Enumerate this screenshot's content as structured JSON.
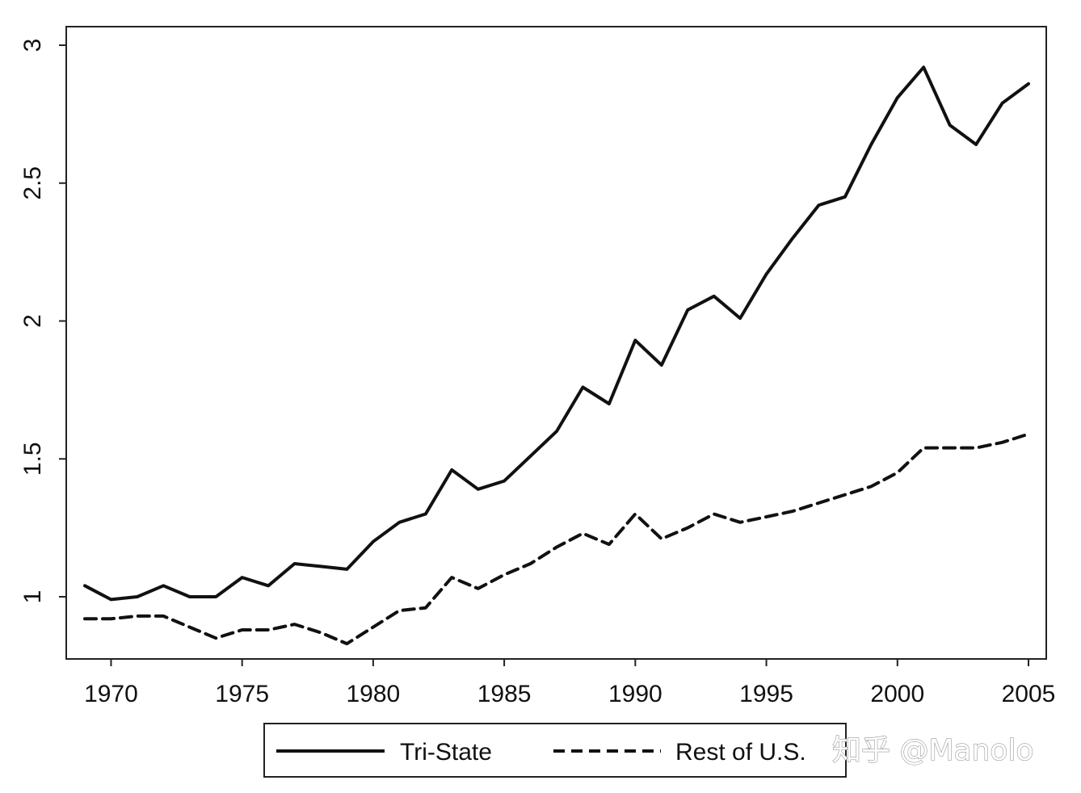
{
  "chart_data": {
    "type": "line",
    "title": "",
    "xlabel": "",
    "ylabel": "",
    "xlim": [
      1969,
      2005
    ],
    "ylim": [
      0.78,
      3.05
    ],
    "x_ticks": [
      1970,
      1975,
      1980,
      1985,
      1990,
      1995,
      2000,
      2005
    ],
    "y_ticks": [
      1,
      1.5,
      2,
      2.5,
      3
    ],
    "grid": false,
    "legend_position": "bottom",
    "x": [
      1969,
      1970,
      1971,
      1972,
      1973,
      1974,
      1975,
      1976,
      1977,
      1978,
      1979,
      1980,
      1981,
      1982,
      1983,
      1984,
      1985,
      1986,
      1987,
      1988,
      1989,
      1990,
      1991,
      1992,
      1993,
      1994,
      1995,
      1996,
      1997,
      1998,
      1999,
      2000,
      2001,
      2002,
      2003,
      2004,
      2005
    ],
    "series": [
      {
        "name": "Tri-State",
        "style": "solid",
        "values": [
          1.04,
          0.99,
          1.0,
          1.04,
          1.0,
          1.0,
          1.07,
          1.04,
          1.12,
          1.11,
          1.1,
          1.2,
          1.27,
          1.3,
          1.46,
          1.39,
          1.42,
          1.51,
          1.6,
          1.76,
          1.7,
          1.93,
          1.84,
          2.04,
          2.09,
          2.01,
          2.17,
          2.3,
          2.42,
          2.45,
          2.64,
          2.81,
          2.92,
          2.71,
          2.64,
          2.79,
          2.86
        ]
      },
      {
        "name": "Rest of U.S.",
        "style": "dashed",
        "values": [
          0.92,
          0.92,
          0.93,
          0.93,
          0.89,
          0.85,
          0.88,
          0.88,
          0.9,
          0.87,
          0.83,
          0.89,
          0.95,
          0.96,
          1.07,
          1.03,
          1.08,
          1.12,
          1.18,
          1.23,
          1.19,
          1.3,
          1.21,
          1.25,
          1.3,
          1.27,
          1.29,
          1.31,
          1.34,
          1.37,
          1.4,
          1.45,
          1.54,
          1.54,
          1.54,
          1.56,
          1.59
        ]
      }
    ]
  },
  "watermark": {
    "text": "知乎 @Manolo"
  }
}
